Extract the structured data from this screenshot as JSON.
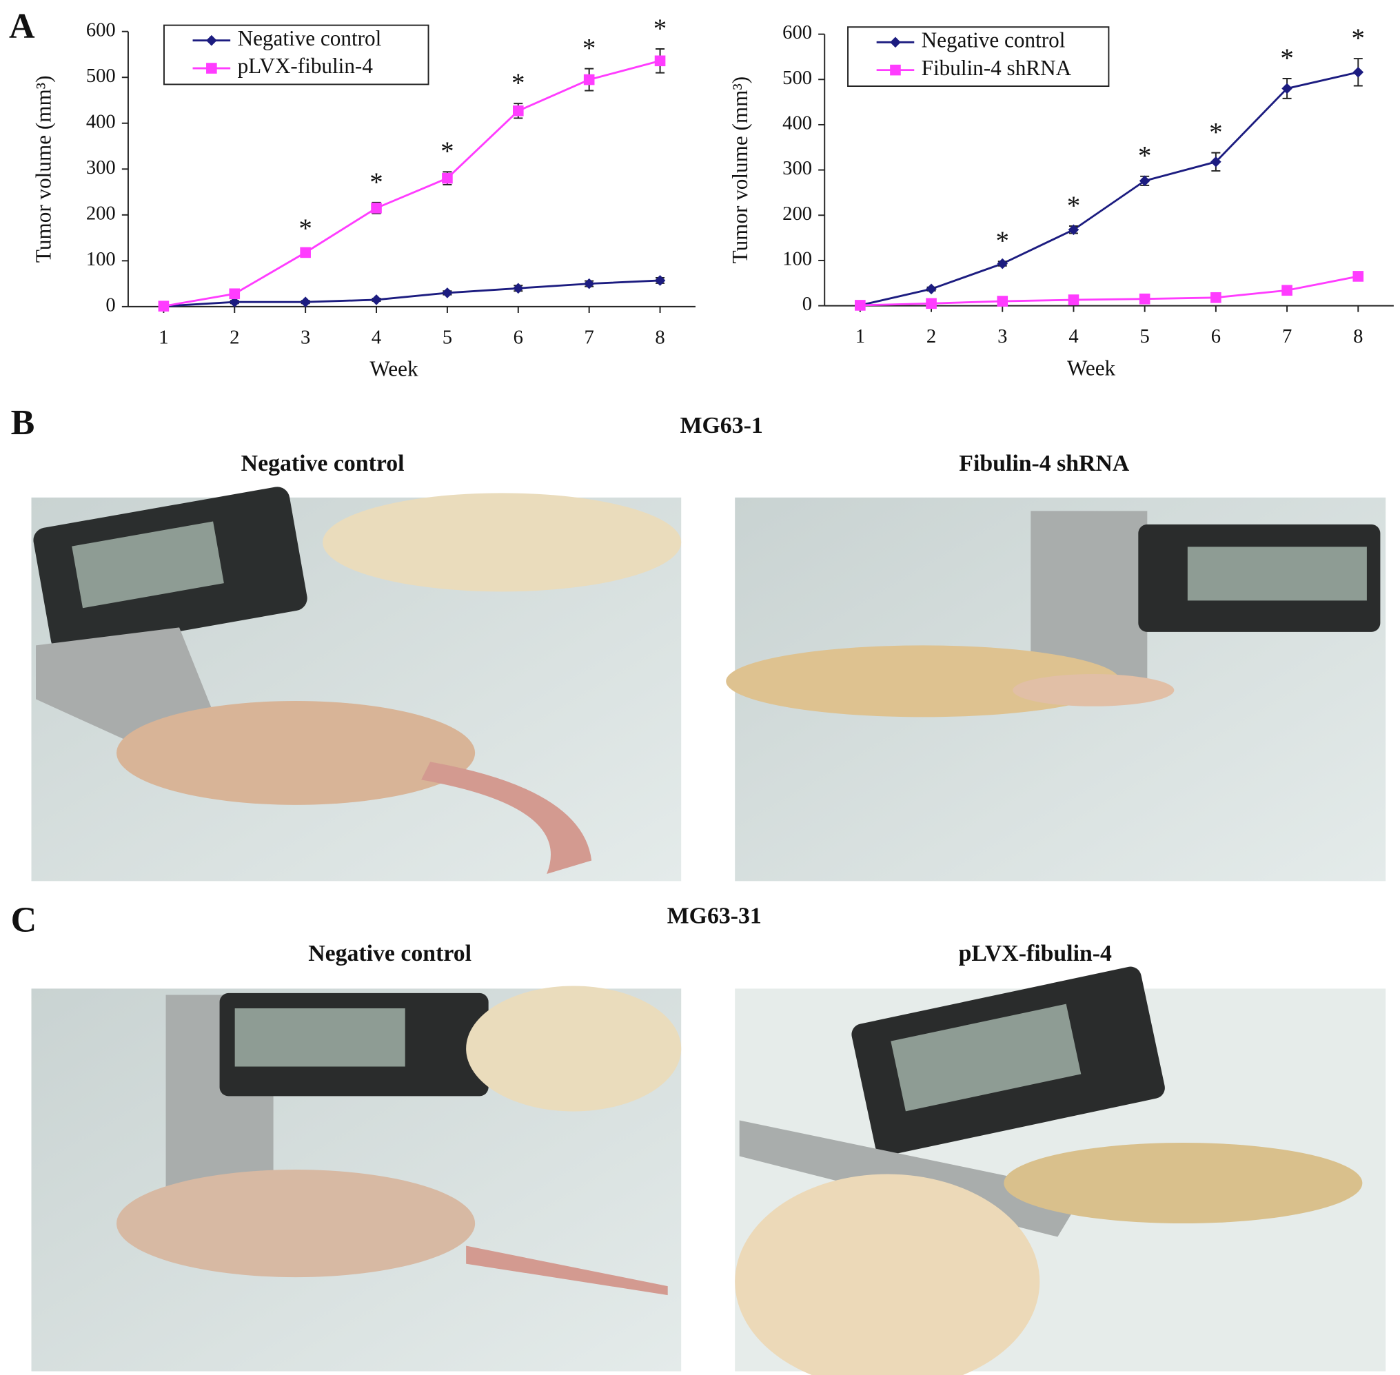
{
  "panels": {
    "a": "A",
    "b": "B",
    "c": "C"
  },
  "section_b": {
    "title": "MG63-1",
    "left": "Negative control",
    "right": "Fibulin-4 shRNA"
  },
  "section_c": {
    "title": "MG63-31",
    "left": "Negative control",
    "right": "pLVX-fibulin-4"
  },
  "chart_data": [
    {
      "type": "line",
      "x_label": "Week",
      "y_label": "Tumor volume (mm³)",
      "x": [
        1,
        2,
        3,
        4,
        5,
        6,
        7,
        8
      ],
      "xlim": [
        0.5,
        8.5
      ],
      "xticks": [
        1,
        2,
        3,
        4,
        5,
        6,
        7,
        8
      ],
      "ylim": [
        0,
        600
      ],
      "yticks": [
        0,
        100,
        200,
        300,
        400,
        500,
        600
      ],
      "legend": "upper left",
      "series": [
        {
          "name": "Negative control",
          "color": "#1c1c80",
          "marker": "diamond",
          "values": [
            1,
            10,
            10,
            15,
            30,
            40,
            50,
            57
          ],
          "errors": [
            2,
            3,
            3,
            3,
            4,
            6,
            6,
            6
          ]
        },
        {
          "name": "pLVX-fibulin-4",
          "color": "#ff3cff",
          "marker": "square",
          "values": [
            1,
            28,
            118,
            215,
            280,
            427,
            495,
            536
          ],
          "errors": [
            2,
            4,
            8,
            12,
            14,
            16,
            24,
            26
          ]
        }
      ],
      "significance": [
        null,
        null,
        "*",
        "*",
        "*",
        "*",
        "*",
        "*"
      ]
    },
    {
      "type": "line",
      "x_label": "Week",
      "y_label": "Tumor volume (mm³)",
      "x": [
        1,
        2,
        3,
        4,
        5,
        6,
        7,
        8
      ],
      "xlim": [
        0.5,
        8.5
      ],
      "xticks": [
        1,
        2,
        3,
        4,
        5,
        6,
        7,
        8
      ],
      "ylim": [
        0,
        600
      ],
      "yticks": [
        0,
        100,
        200,
        300,
        400,
        500,
        600
      ],
      "legend": "upper left",
      "series": [
        {
          "name": "Negative control",
          "color": "#1c1c80",
          "marker": "diamond",
          "values": [
            1,
            37,
            93,
            168,
            276,
            318,
            480,
            516
          ],
          "errors": [
            2,
            4,
            5,
            8,
            10,
            20,
            22,
            30
          ]
        },
        {
          "name": "Fibulin-4 shRNA",
          "color": "#ff3cff",
          "marker": "square",
          "values": [
            1,
            5,
            10,
            13,
            15,
            18,
            34,
            65
          ],
          "errors": [
            1,
            2,
            2,
            2,
            3,
            3,
            4,
            5
          ]
        }
      ],
      "significance": [
        null,
        null,
        "*",
        "*",
        "*",
        "*",
        "*",
        "*"
      ]
    }
  ]
}
